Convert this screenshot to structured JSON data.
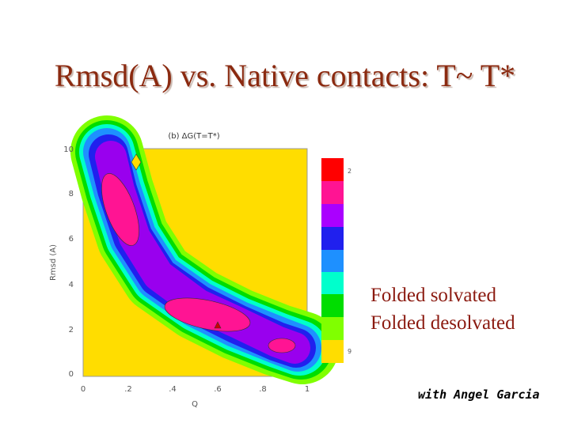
{
  "slide": {
    "title": "Rmsd(A)  vs. Native contacts: T~ T*",
    "figure": {
      "title": "(b) ΔG(T=T*)",
      "x_label": "Q",
      "y_label": "Rmsd (A)",
      "x_ticks": [
        "0",
        ".2",
        ".4",
        ".6",
        ".8",
        "1"
      ],
      "y_ticks": [
        "0",
        "2",
        "4",
        "6",
        "8",
        "10"
      ],
      "colorbar_labels": [
        "2",
        "9"
      ]
    },
    "annotations": [
      "Folded solvated",
      "Folded desolvated"
    ],
    "credit": "with Angel Garcia"
  }
}
